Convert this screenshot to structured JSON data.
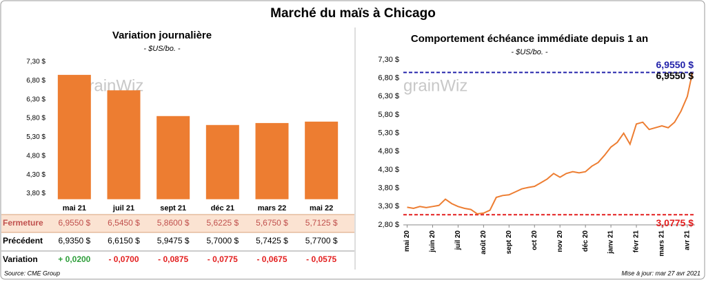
{
  "title": "Marché du maïs à Chicago",
  "chart_data": [
    {
      "type": "bar",
      "title": "Variation journalière",
      "subtitle": "- $US/bo. -",
      "watermark": "grainWiz",
      "categories": [
        "mai 21",
        "juil 21",
        "sept 21",
        "déc 21",
        "mars 22",
        "mai 22"
      ],
      "values": [
        6.955,
        6.545,
        5.86,
        5.6225,
        5.675,
        5.7125
      ],
      "color": "#ed7d31",
      "ylim": [
        3.65,
        7.3
      ],
      "yticks": [
        {
          "value": 3.8,
          "label": "3,80 $"
        },
        {
          "value": 4.3,
          "label": "4,30 $"
        },
        {
          "value": 4.8,
          "label": "4,80 $"
        },
        {
          "value": 5.3,
          "label": "5,30 $"
        },
        {
          "value": 5.8,
          "label": "5,80 $"
        },
        {
          "value": 6.3,
          "label": "6,30 $"
        },
        {
          "value": 6.8,
          "label": "6,80 $"
        },
        {
          "value": 7.3,
          "label": "7,30 $"
        }
      ]
    },
    {
      "type": "line",
      "title": "Comportement échéance immédiate depuis 1 an",
      "subtitle": "- $US/bo. -",
      "watermark": "grainWiz",
      "x": [
        0,
        0.25,
        0.5,
        0.75,
        1,
        1.25,
        1.5,
        1.75,
        2,
        2.25,
        2.5,
        2.75,
        3,
        3.25,
        3.5,
        3.75,
        4,
        4.25,
        4.5,
        4.75,
        5,
        5.25,
        5.5,
        5.75,
        6,
        6.25,
        6.5,
        6.75,
        7,
        7.25,
        7.5,
        7.75,
        8,
        8.25,
        8.5,
        8.75,
        9,
        9.25,
        9.5,
        9.75,
        10,
        10.25,
        10.5,
        10.75,
        11,
        11.2
      ],
      "series": [
        {
          "name": "Échéance immédiate",
          "color": "#ed7d31",
          "values": [
            3.28,
            3.25,
            3.3,
            3.27,
            3.3,
            3.33,
            3.5,
            3.38,
            3.3,
            3.25,
            3.22,
            3.1,
            3.12,
            3.2,
            3.55,
            3.6,
            3.62,
            3.7,
            3.78,
            3.82,
            3.85,
            3.95,
            4.05,
            4.2,
            4.1,
            4.2,
            4.25,
            4.22,
            4.25,
            4.4,
            4.5,
            4.7,
            4.92,
            5.05,
            5.3,
            5.0,
            5.55,
            5.6,
            5.4,
            5.45,
            5.5,
            5.45,
            5.6,
            5.9,
            6.3,
            6.955
          ]
        }
      ],
      "end_label": "6,9550 $",
      "xlim": [
        -0.15,
        11.3
      ],
      "xticks": [
        {
          "value": 0,
          "label": "mai 20"
        },
        {
          "value": 1,
          "label": "juin 20"
        },
        {
          "value": 2,
          "label": "juil 20"
        },
        {
          "value": 3,
          "label": "août 20"
        },
        {
          "value": 4,
          "label": "sept 20"
        },
        {
          "value": 5,
          "label": "oct 20"
        },
        {
          "value": 6,
          "label": "nov 20"
        },
        {
          "value": 7,
          "label": "déc 20"
        },
        {
          "value": 8,
          "label": "janv 21"
        },
        {
          "value": 9,
          "label": "févr 21"
        },
        {
          "value": 10,
          "label": "mars 21"
        },
        {
          "value": 11,
          "label": "avr 21"
        }
      ],
      "ylim": [
        2.8,
        7.3
      ],
      "yticks": [
        {
          "value": 2.8,
          "label": "2,80 $"
        },
        {
          "value": 3.3,
          "label": "3,30 $"
        },
        {
          "value": 3.8,
          "label": "3,80 $"
        },
        {
          "value": 4.3,
          "label": "4,30 $"
        },
        {
          "value": 4.8,
          "label": "4,80 $"
        },
        {
          "value": 5.3,
          "label": "5,30 $"
        },
        {
          "value": 5.8,
          "label": "5,80 $"
        },
        {
          "value": 6.3,
          "label": "6,30 $"
        },
        {
          "value": 6.8,
          "label": "6,80 $"
        },
        {
          "value": 7.3,
          "label": "7,30 $"
        }
      ],
      "reference_lines": [
        {
          "value": 6.955,
          "label": "6,9550 $",
          "color": "#2222aa"
        },
        {
          "value": 3.0775,
          "label": "3,0775 $",
          "color": "#e31e1e"
        }
      ]
    }
  ],
  "table": {
    "rows": [
      {
        "label": "Fermeture",
        "cells": [
          "6,9550  $",
          "6,5450  $",
          "5,8600  $",
          "5,6225  $",
          "5,6750  $",
          "5,7125  $"
        ],
        "color": "#c0504d"
      },
      {
        "label": "Précédent",
        "cells": [
          "6,9350  $",
          "6,6150  $",
          "5,9475  $",
          "5,7000  $",
          "5,7425  $",
          "5,7700  $"
        ],
        "color": "#000000"
      },
      {
        "label": "Variation",
        "cells": [
          "+ 0,0200",
          "- 0,0700",
          "- 0,0875",
          "- 0,0775",
          "- 0,0675",
          "- 0,0575"
        ],
        "cell_colors": [
          "#2e9e3a",
          "#e31e1e",
          "#e31e1e",
          "#e31e1e",
          "#e31e1e",
          "#e31e1e"
        ]
      }
    ]
  },
  "footer": {
    "source": "Source: CME Group",
    "updated": "Mise à jour: mar 27 avr 2021"
  }
}
